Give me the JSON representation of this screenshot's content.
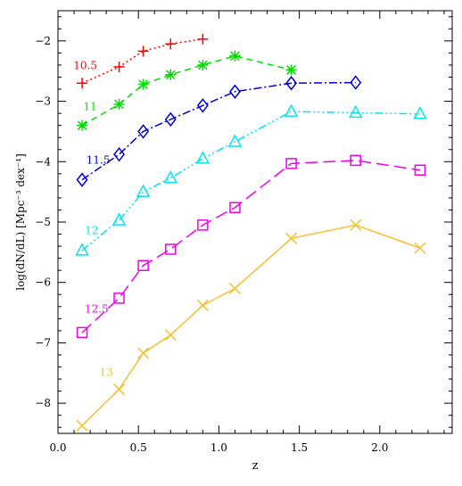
{
  "chart_data": {
    "type": "line",
    "xlabel": "z",
    "ylabel": "log(dN/dL)  [Mpc⁻³ dex⁻¹]",
    "xlim": [
      0.0,
      2.45
    ],
    "ylim": [
      -8.5,
      -1.5
    ],
    "xticks": [
      0.0,
      0.5,
      1.0,
      1.5,
      2.0
    ],
    "xtick_labels": [
      "0.0",
      "0.5",
      "1.0",
      "1.5",
      "2.0"
    ],
    "yticks": [
      -8,
      -7,
      -6,
      -5,
      -4,
      -3,
      -2
    ],
    "ytick_labels": [
      "−8",
      "−7",
      "−6",
      "−5",
      "−4",
      "−3",
      "−2"
    ],
    "grid": false,
    "series": [
      {
        "name": "10.5",
        "color": "#ff0000",
        "marker": "plus",
        "dash": "2,3",
        "x": [
          0.15,
          0.38,
          0.53,
          0.7,
          0.9
        ],
        "y": [
          -2.7,
          -2.43,
          -2.17,
          -2.05,
          -1.97
        ]
      },
      {
        "name": "11",
        "color": "#00dd00",
        "marker": "asterisk",
        "dash": "7,5",
        "x": [
          0.15,
          0.38,
          0.53,
          0.7,
          0.9,
          1.1,
          1.45
        ],
        "y": [
          -3.4,
          -3.05,
          -2.72,
          -2.56,
          -2.4,
          -2.25,
          -2.48
        ]
      },
      {
        "name": "11.5",
        "color": "#0000cc",
        "marker": "diamond",
        "dash": "9,3,2,3",
        "x": [
          0.15,
          0.38,
          0.53,
          0.7,
          0.9,
          1.1,
          1.45,
          1.85
        ],
        "y": [
          -4.3,
          -3.88,
          -3.5,
          -3.3,
          -3.07,
          -2.84,
          -2.7,
          -2.69
        ]
      },
      {
        "name": "12",
        "color": "#00e5ee",
        "marker": "triangle",
        "dash": "9,3,2,3,2,3,2,3",
        "x": [
          0.15,
          0.38,
          0.53,
          0.7,
          0.9,
          1.1,
          1.45,
          1.85,
          2.25
        ],
        "y": [
          -5.47,
          -4.97,
          -4.5,
          -4.27,
          -3.95,
          -3.67,
          -3.17,
          -3.19,
          -3.21
        ]
      },
      {
        "name": "12.5",
        "color": "#ee00ee",
        "marker": "square",
        "dash": "14,6",
        "x": [
          0.15,
          0.38,
          0.53,
          0.7,
          0.9,
          1.1,
          1.45,
          1.85,
          2.25
        ],
        "y": [
          -6.83,
          -6.26,
          -5.72,
          -5.45,
          -5.05,
          -4.76,
          -4.03,
          -3.98,
          -4.14
        ]
      },
      {
        "name": "13",
        "color": "#f5c030",
        "marker": "x",
        "dash": "",
        "x": [
          0.15,
          0.38,
          0.53,
          0.7,
          0.9,
          1.1,
          1.45,
          1.85,
          2.25
        ],
        "y": [
          -8.37,
          -7.77,
          -7.17,
          -6.87,
          -6.38,
          -6.1,
          -5.27,
          -5.05,
          -5.43
        ]
      }
    ],
    "annotations": [
      {
        "text": "10.5",
        "x": 0.17,
        "y": -2.47,
        "color": "#ff0000"
      },
      {
        "text": "11",
        "x": 0.2,
        "y": -3.15,
        "color": "#00dd00"
      },
      {
        "text": "11.5",
        "x": 0.25,
        "y": -4.03,
        "color": "#0000cc"
      },
      {
        "text": "12",
        "x": 0.21,
        "y": -5.2,
        "color": "#00e5ee"
      },
      {
        "text": "12.5",
        "x": 0.24,
        "y": -6.5,
        "color": "#ee00ee"
      },
      {
        "text": "13",
        "x": 0.3,
        "y": -7.55,
        "color": "#f5c030"
      }
    ]
  }
}
